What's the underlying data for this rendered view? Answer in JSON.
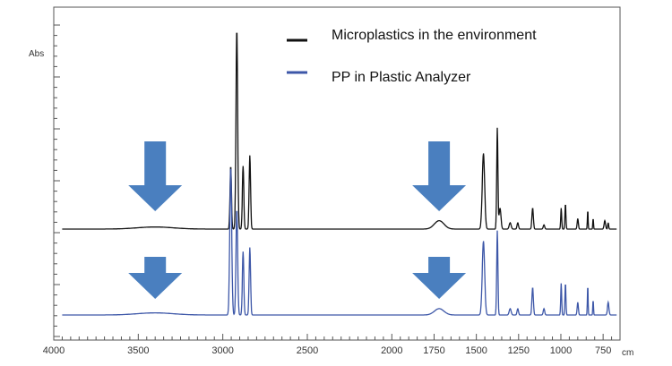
{
  "chart_data": {
    "type": "line",
    "ylabel": "Abs",
    "xunit": "cm",
    "xlim": [
      4000,
      650
    ],
    "x_ticks": [
      4000,
      3500,
      3000,
      2500,
      2000,
      1750,
      1500,
      1250,
      1000,
      750
    ],
    "x_tick_labels": [
      "4000",
      "3500",
      "3000",
      "2500",
      "2000",
      "1750",
      "1500",
      "1250",
      "1000",
      "750"
    ],
    "legend_position": "top-right",
    "grid": false,
    "colors": {
      "environment": "#111111",
      "analyzer": "#3d57a8",
      "arrow": "#4a7fbf"
    },
    "series": [
      {
        "name": "Microplastics in the environment",
        "color": "#111111",
        "baseline": 0.0,
        "peaks": [
          {
            "x": 2953,
            "h": 0.3,
            "w": 6
          },
          {
            "x": 2917,
            "h": 0.95,
            "w": 7
          },
          {
            "x": 2880,
            "h": 0.3,
            "w": 6
          },
          {
            "x": 2840,
            "h": 0.35,
            "w": 6
          },
          {
            "x": 3400,
            "h": 0.01,
            "w": 150
          },
          {
            "x": 1720,
            "h": 0.04,
            "w": 40
          },
          {
            "x": 1458,
            "h": 0.36,
            "w": 10
          },
          {
            "x": 1376,
            "h": 0.48,
            "w": 5
          },
          {
            "x": 1360,
            "h": 0.1,
            "w": 8
          },
          {
            "x": 1300,
            "h": 0.03,
            "w": 8
          },
          {
            "x": 1255,
            "h": 0.03,
            "w": 6
          },
          {
            "x": 1167,
            "h": 0.1,
            "w": 6
          },
          {
            "x": 1100,
            "h": 0.02,
            "w": 6
          },
          {
            "x": 998,
            "h": 0.1,
            "w": 4
          },
          {
            "x": 973,
            "h": 0.12,
            "w": 4
          },
          {
            "x": 900,
            "h": 0.05,
            "w": 5
          },
          {
            "x": 841,
            "h": 0.09,
            "w": 3
          },
          {
            "x": 809,
            "h": 0.05,
            "w": 3
          },
          {
            "x": 740,
            "h": 0.04,
            "w": 6
          },
          {
            "x": 720,
            "h": 0.03,
            "w": 4
          }
        ]
      },
      {
        "name": "PP in Plastic Analyzer",
        "color": "#3d57a8",
        "baseline": 0.0,
        "peaks": [
          {
            "x": 2953,
            "h": 0.7,
            "w": 8
          },
          {
            "x": 2917,
            "h": 0.5,
            "w": 7
          },
          {
            "x": 2880,
            "h": 0.3,
            "w": 6
          },
          {
            "x": 2840,
            "h": 0.32,
            "w": 6
          },
          {
            "x": 3400,
            "h": 0.01,
            "w": 150
          },
          {
            "x": 1720,
            "h": 0.03,
            "w": 40
          },
          {
            "x": 1458,
            "h": 0.35,
            "w": 10
          },
          {
            "x": 1376,
            "h": 0.4,
            "w": 5
          },
          {
            "x": 1300,
            "h": 0.03,
            "w": 8
          },
          {
            "x": 1255,
            "h": 0.03,
            "w": 6
          },
          {
            "x": 1167,
            "h": 0.13,
            "w": 6
          },
          {
            "x": 1100,
            "h": 0.03,
            "w": 6
          },
          {
            "x": 998,
            "h": 0.15,
            "w": 4
          },
          {
            "x": 973,
            "h": 0.15,
            "w": 4
          },
          {
            "x": 900,
            "h": 0.06,
            "w": 5
          },
          {
            "x": 841,
            "h": 0.14,
            "w": 3
          },
          {
            "x": 809,
            "h": 0.07,
            "w": 3
          },
          {
            "x": 720,
            "h": 0.06,
            "w": 6
          }
        ]
      }
    ],
    "annotations": [
      {
        "type": "down-arrow",
        "x": 3400,
        "series": 0
      },
      {
        "type": "down-arrow",
        "x": 1720,
        "series": 0
      },
      {
        "type": "down-arrow",
        "x": 3400,
        "series": 1
      },
      {
        "type": "down-arrow",
        "x": 1720,
        "series": 1
      }
    ]
  }
}
